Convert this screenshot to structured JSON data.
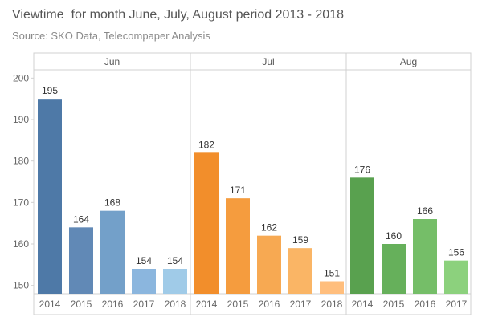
{
  "chart_data": {
    "type": "bar",
    "title": "Viewtime  for month June, July, August period 2013 - 2018",
    "subtitle": "Source: SKO Data, Telecompaper Analysis",
    "ylim": [
      148,
      202
    ],
    "yticks": [
      150,
      160,
      170,
      180,
      190,
      200
    ],
    "grid": false,
    "panels": [
      {
        "name": "Jun",
        "categories": [
          "2014",
          "2015",
          "2016",
          "2017",
          "2018"
        ],
        "values": [
          195,
          164,
          168,
          154,
          154
        ],
        "colors": [
          "#4e79a7",
          "#6189b6",
          "#73a0c9",
          "#8bb6de",
          "#a0cbe8"
        ]
      },
      {
        "name": "Jul",
        "categories": [
          "2014",
          "2015",
          "2016",
          "2017",
          "2018"
        ],
        "values": [
          182,
          171,
          162,
          159,
          151
        ],
        "colors": [
          "#f28e2b",
          "#f59c3e",
          "#f7a952",
          "#fab565",
          "#ffbe7d"
        ]
      },
      {
        "name": "Aug",
        "categories": [
          "2014",
          "2015",
          "2016",
          "2017"
        ],
        "values": [
          176,
          160,
          166,
          156
        ],
        "colors": [
          "#59a14f",
          "#66b05b",
          "#75be68",
          "#8cd17d"
        ]
      }
    ]
  }
}
